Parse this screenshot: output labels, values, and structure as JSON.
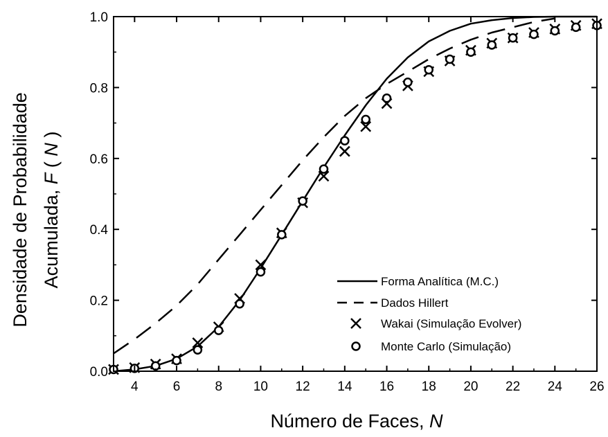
{
  "chart_data": {
    "type": "line",
    "xlabel": "Número de Faces,",
    "xlabel_var": "N",
    "ylabel_line1": "Densidade de Probabilidade",
    "ylabel_line2": "Acumulada,",
    "ylabel_var": "F",
    "ylabel_var_arg": "N",
    "xlim": [
      3,
      26
    ],
    "ylim": [
      0.0,
      1.0
    ],
    "x_ticks": [
      4,
      6,
      8,
      10,
      12,
      14,
      16,
      18,
      20,
      22,
      24,
      26
    ],
    "y_ticks": [
      "0.0",
      "0.2",
      "0.4",
      "0.6",
      "0.8",
      "1.0"
    ],
    "grid": false,
    "legend_position": "bottom-right",
    "series": [
      {
        "name": "Forma Analítica (M.C.)",
        "style": "solid-line",
        "x": [
          3,
          4,
          5,
          6,
          7,
          8,
          9,
          10,
          11,
          12,
          13,
          14,
          15,
          16,
          17,
          18,
          19,
          20,
          21,
          22,
          23,
          24,
          25,
          26
        ],
        "y": [
          0.0,
          0.005,
          0.015,
          0.035,
          0.07,
          0.125,
          0.2,
          0.29,
          0.385,
          0.48,
          0.575,
          0.665,
          0.75,
          0.825,
          0.885,
          0.93,
          0.96,
          0.98,
          0.99,
          0.996,
          0.999,
          1.0,
          1.0,
          1.0
        ]
      },
      {
        "name": "Dados Hillert",
        "style": "dashed-line",
        "x": [
          3,
          4,
          5,
          6,
          7,
          8,
          9,
          10,
          11,
          12,
          13,
          14,
          15,
          16,
          17,
          18,
          19,
          20,
          21,
          22,
          23,
          24
        ],
        "y": [
          0.05,
          0.09,
          0.135,
          0.185,
          0.245,
          0.315,
          0.385,
          0.455,
          0.525,
          0.595,
          0.66,
          0.72,
          0.77,
          0.81,
          0.845,
          0.88,
          0.91,
          0.935,
          0.955,
          0.97,
          0.985,
          0.995
        ]
      },
      {
        "name": "Wakai (Simulação Evolver)",
        "style": "x-marker",
        "x": [
          3,
          4,
          5,
          6,
          7,
          8,
          9,
          10,
          11,
          12,
          13,
          14,
          15,
          16,
          17,
          18,
          19,
          20,
          21,
          22,
          23,
          24,
          25,
          26
        ],
        "y": [
          0.005,
          0.01,
          0.02,
          0.035,
          0.08,
          0.125,
          0.205,
          0.3,
          0.39,
          0.475,
          0.55,
          0.62,
          0.69,
          0.755,
          0.805,
          0.845,
          0.875,
          0.905,
          0.925,
          0.94,
          0.955,
          0.965,
          0.975,
          0.98
        ]
      },
      {
        "name": "Monte Carlo (Simulação)",
        "style": "circle-marker",
        "x": [
          3,
          4,
          5,
          6,
          7,
          8,
          9,
          10,
          11,
          12,
          13,
          14,
          15,
          16,
          17,
          18,
          19,
          20,
          21,
          22,
          23,
          24,
          25,
          26
        ],
        "y": [
          0.005,
          0.008,
          0.015,
          0.03,
          0.06,
          0.115,
          0.19,
          0.28,
          0.385,
          0.48,
          0.57,
          0.65,
          0.71,
          0.77,
          0.815,
          0.85,
          0.88,
          0.9,
          0.92,
          0.94,
          0.95,
          0.96,
          0.97,
          0.975
        ]
      }
    ]
  }
}
